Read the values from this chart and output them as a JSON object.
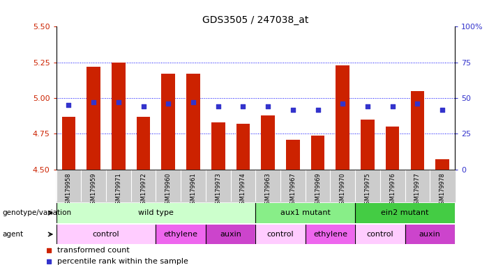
{
  "title": "GDS3505 / 247038_at",
  "samples": [
    "GSM179958",
    "GSM179959",
    "GSM179971",
    "GSM179972",
    "GSM179960",
    "GSM179961",
    "GSM179973",
    "GSM179974",
    "GSM179963",
    "GSM179967",
    "GSM179969",
    "GSM179970",
    "GSM179975",
    "GSM179976",
    "GSM179977",
    "GSM179978"
  ],
  "bar_values": [
    4.87,
    5.22,
    5.25,
    4.87,
    5.17,
    5.17,
    4.83,
    4.82,
    4.88,
    4.71,
    4.74,
    5.23,
    4.85,
    4.8,
    5.05,
    4.57
  ],
  "dot_values": [
    45,
    47,
    47,
    44,
    46,
    47,
    44,
    44,
    44,
    42,
    42,
    46,
    44,
    44,
    46,
    42
  ],
  "ylim": [
    4.5,
    5.5
  ],
  "y2lim": [
    0,
    100
  ],
  "yticks": [
    4.5,
    4.75,
    5.0,
    5.25,
    5.5
  ],
  "y2ticks": [
    0,
    25,
    50,
    75,
    100
  ],
  "bar_color": "#cc2200",
  "dot_color": "#3333cc",
  "bar_bottom": 4.5,
  "genotype_groups": [
    {
      "label": "wild type",
      "start": 0,
      "end": 8,
      "color": "#ccffcc"
    },
    {
      "label": "aux1 mutant",
      "start": 8,
      "end": 12,
      "color": "#88ee88"
    },
    {
      "label": "ein2 mutant",
      "start": 12,
      "end": 16,
      "color": "#44cc44"
    }
  ],
  "agent_groups": [
    {
      "label": "control",
      "start": 0,
      "end": 4,
      "color": "#ffccff"
    },
    {
      "label": "ethylene",
      "start": 4,
      "end": 6,
      "color": "#ee66ee"
    },
    {
      "label": "auxin",
      "start": 6,
      "end": 8,
      "color": "#cc44cc"
    },
    {
      "label": "control",
      "start": 8,
      "end": 10,
      "color": "#ffccff"
    },
    {
      "label": "ethylene",
      "start": 10,
      "end": 12,
      "color": "#ee66ee"
    },
    {
      "label": "control",
      "start": 12,
      "end": 14,
      "color": "#ffccff"
    },
    {
      "label": "auxin",
      "start": 14,
      "end": 16,
      "color": "#cc44cc"
    }
  ],
  "tick_label_color_left": "#cc2200",
  "tick_label_color_right": "#3333cc",
  "label_bg_color": "#cccccc",
  "grid_lines": [
    4.75,
    5.0,
    5.25
  ],
  "grid_color": "blue",
  "title_fontsize": 10
}
